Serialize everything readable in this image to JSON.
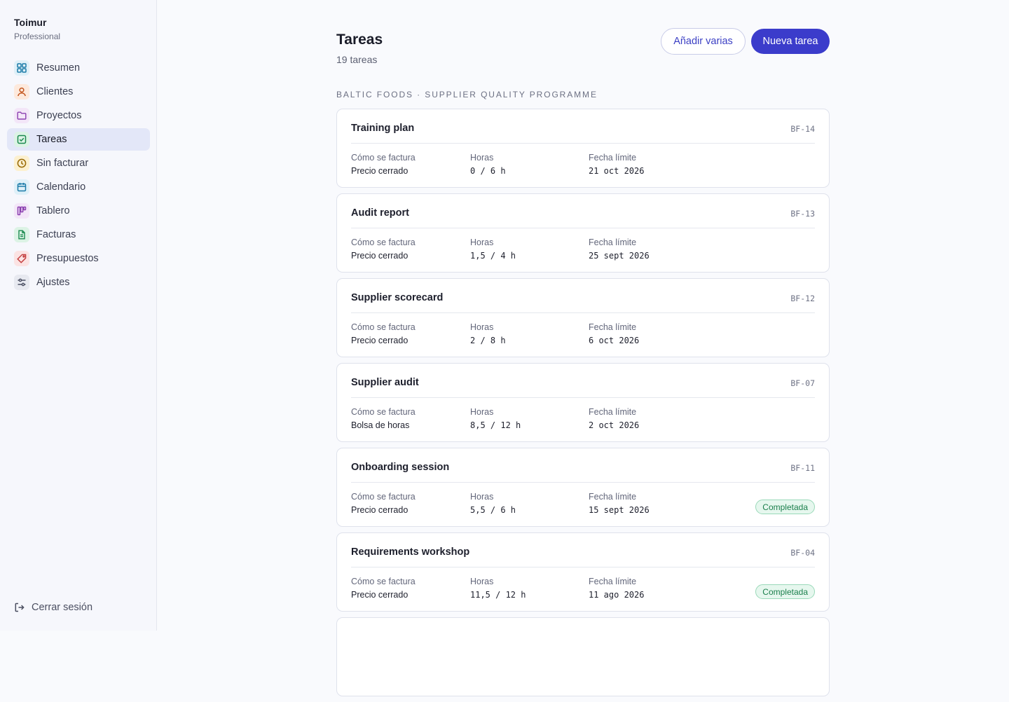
{
  "app": {
    "name": "Toimur",
    "plan": "Professional"
  },
  "nav": [
    {
      "label": "Resumen",
      "icon": "grid-icon",
      "color": "#1b7ba8",
      "bg": "#dff0f8"
    },
    {
      "label": "Clientes",
      "icon": "user-icon",
      "color": "#c2541c",
      "bg": "#fde9dc"
    },
    {
      "label": "Proyectos",
      "icon": "folder-icon",
      "color": "#8b3fb0",
      "bg": "#f3e6f8"
    },
    {
      "label": "Tareas",
      "icon": "checkbox-icon",
      "color": "#1b8a4f",
      "bg": "#dcf3e5"
    },
    {
      "label": "Sin facturar",
      "icon": "clock-icon",
      "color": "#9a6b06",
      "bg": "#fcf0cf"
    },
    {
      "label": "Calendario",
      "icon": "calendar-icon",
      "color": "#1b7ba8",
      "bg": "#dff0f8"
    },
    {
      "label": "Tablero",
      "icon": "kanban-icon",
      "color": "#8b3fb0",
      "bg": "#f3e6f8"
    },
    {
      "label": "Facturas",
      "icon": "document-icon",
      "color": "#1b8a4f",
      "bg": "#dcf3e5"
    },
    {
      "label": "Presupuestos",
      "icon": "tag-icon",
      "color": "#c23a3a",
      "bg": "#fbe3e3"
    },
    {
      "label": "Ajustes",
      "icon": "sliders-icon",
      "color": "#4b5064",
      "bg": "#e7e9f0"
    }
  ],
  "logout": {
    "label": "Cerrar sesión",
    "icon": "logout-icon"
  },
  "header": {
    "title": "Tareas",
    "count": "19 tareas",
    "add_multiple": "Añadir varias",
    "new_task": "Nueva tarea"
  },
  "group": {
    "label": "BALTIC FOODS · SUPPLIER QUALITY PROGRAMME"
  },
  "field_labels": {
    "billing": "Cómo se factura",
    "hours": "Horas",
    "due": "Fecha límite"
  },
  "tasks": [
    {
      "title": "Training plan",
      "id": "BF-14",
      "billing": "Precio cerrado",
      "hours": "0 / 6 h",
      "due": "21 oct 2026",
      "status": ""
    },
    {
      "title": "Audit report",
      "id": "BF-13",
      "billing": "Precio cerrado",
      "hours": "1,5 / 4 h",
      "due": "25 sept 2026",
      "status": ""
    },
    {
      "title": "Supplier scorecard",
      "id": "BF-12",
      "billing": "Precio cerrado",
      "hours": "2 / 8 h",
      "due": "6 oct 2026",
      "status": ""
    },
    {
      "title": "Supplier audit",
      "id": "BF-07",
      "billing": "Bolsa de horas",
      "hours": "8,5 / 12 h",
      "due": "2 oct 2026",
      "status": ""
    },
    {
      "title": "Onboarding session",
      "id": "BF-11",
      "billing": "Precio cerrado",
      "hours": "5,5 / 6 h",
      "due": "15 sept 2026",
      "status": "Completada"
    },
    {
      "title": "Requirements workshop",
      "id": "BF-04",
      "billing": "Precio cerrado",
      "hours": "11,5 / 12 h",
      "due": "11 ago 2026",
      "status": "Completada"
    }
  ],
  "colors": {
    "accent": "#3b3ccb",
    "active_nav": "#e3e7f8",
    "success": "#1b7f4c"
  }
}
